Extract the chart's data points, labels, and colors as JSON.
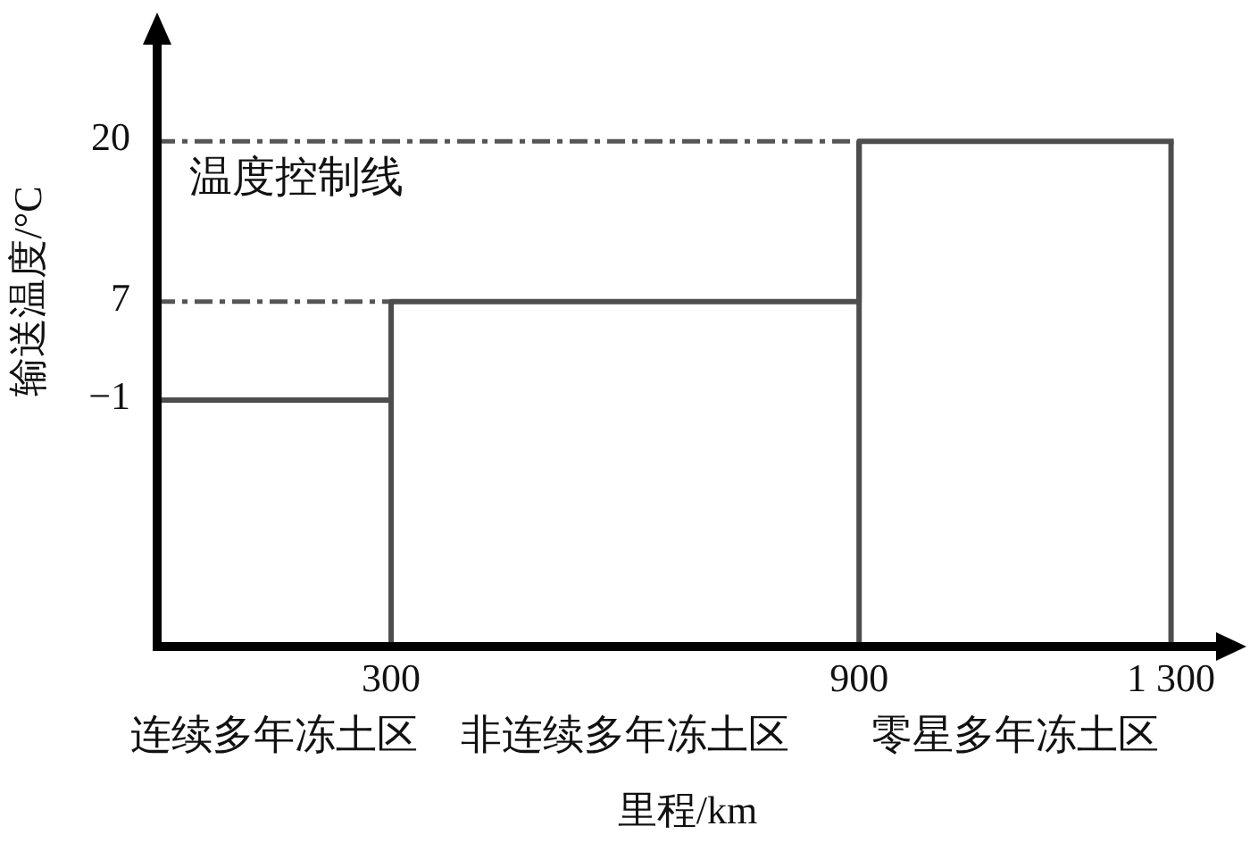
{
  "chart_data": {
    "type": "step",
    "x": [
      0,
      300,
      900,
      1300
    ],
    "values": [
      -1,
      7,
      20,
      20
    ],
    "color": "#4d4d4d",
    "xlabel": "里程/km",
    "ylabel": "输送温度/°C",
    "xlim": [
      0,
      1360
    ],
    "xticks": [
      300,
      900,
      {
        "value": 1300,
        "label": "1 300"
      }
    ],
    "ylim": [
      -21,
      28
    ],
    "yticks": [
      {
        "value": -1,
        "label": "−1"
      },
      7,
      20
    ],
    "ref_lines": [
      {
        "axis": "y",
        "value": 20,
        "label": "温度控制线",
        "color": "#555555",
        "line_style": "dashed"
      },
      {
        "axis": "y",
        "value": 7,
        "color": "#555555",
        "line_style": "dashed"
      },
      {
        "axis": "x",
        "value": 300,
        "color": "#4d4d4d"
      },
      {
        "axis": "x",
        "value": 900,
        "color": "#4d4d4d"
      },
      {
        "axis": "x",
        "value": 1300,
        "color": "#4d4d4d"
      }
    ],
    "annotations": [
      "连续多年冻土区",
      "非连续多年冻土区",
      "零星多年冻土区"
    ]
  }
}
